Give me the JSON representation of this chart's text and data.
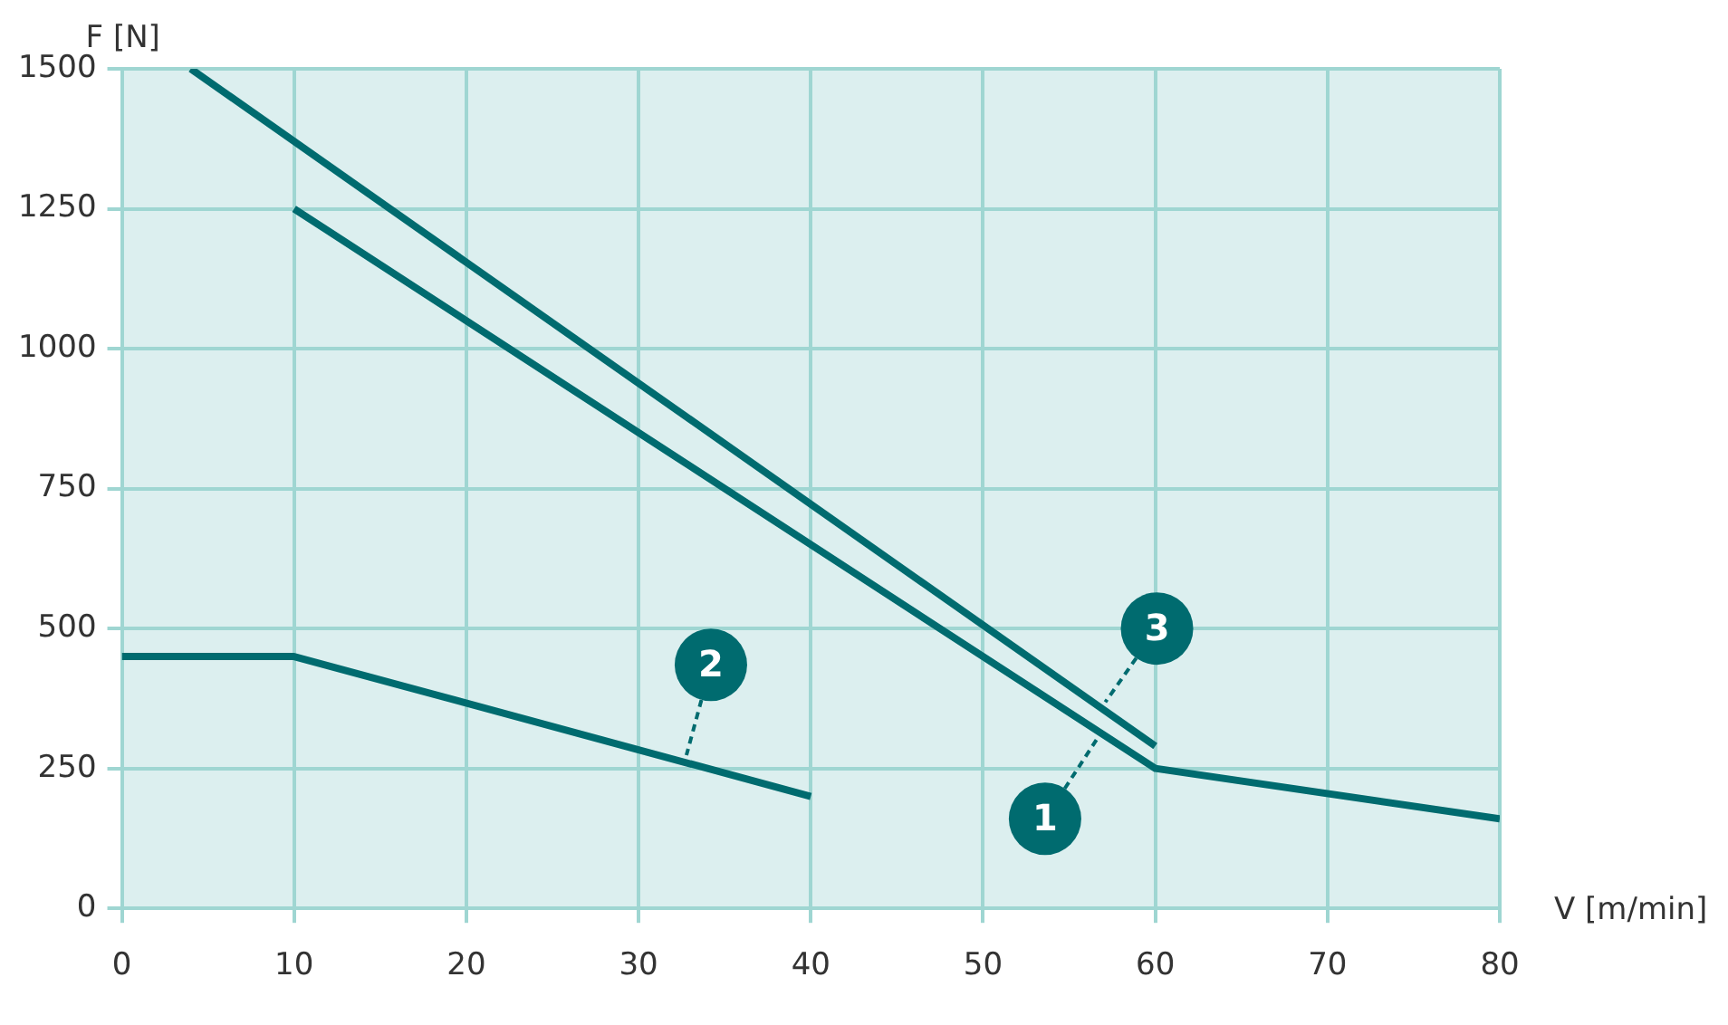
{
  "chart_data": {
    "type": "line",
    "xlabel": "V [m/min]",
    "ylabel": "F [N]",
    "xlim": [
      0,
      80
    ],
    "xticks": [
      0,
      10,
      20,
      30,
      40,
      50,
      60,
      70,
      80
    ],
    "ylim": [
      0,
      1500
    ],
    "yticks": [
      0,
      250,
      500,
      750,
      1000,
      1250,
      1500
    ],
    "grid": true,
    "legend": false,
    "marker": "none",
    "line_style": "solid",
    "series": [
      {
        "color": "#006b6f",
        "x": [
          10,
          60,
          80
        ],
        "values": [
          1250,
          250,
          160
        ]
      },
      {
        "color": "#006b6f",
        "x": [
          0,
          10,
          40
        ],
        "values": [
          450,
          450,
          200
        ]
      },
      {
        "color": "#006b6f",
        "x": [
          4,
          60
        ],
        "values": [
          1500,
          290
        ]
      }
    ],
    "annotations": [
      {
        "text": "1",
        "x": 53.6,
        "y": 160
      },
      {
        "text": "2",
        "x": 34.2,
        "y": 435
      },
      {
        "text": "3",
        "x": 60.1,
        "y": 500
      }
    ]
  }
}
